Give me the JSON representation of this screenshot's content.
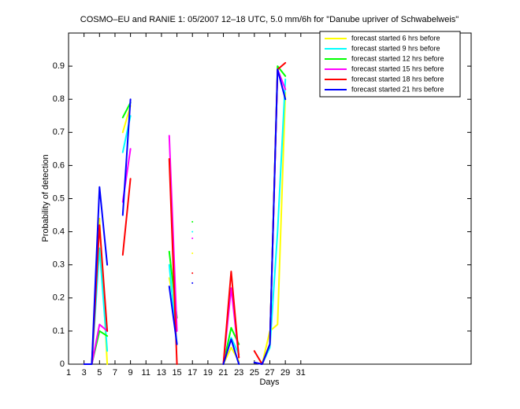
{
  "chart_data": {
    "type": "line",
    "title": "COSMO–EU and RANIE 1: 05/2007 12–18 UTC, 5.0 mm/6h for \"Danube upriver of Schwabelweis\"",
    "xlabel": "Days",
    "ylabel": "Probability of detection",
    "x": [
      1,
      2,
      3,
      4,
      5,
      6,
      7,
      8,
      9,
      10,
      11,
      12,
      13,
      14,
      15,
      16,
      17,
      18,
      19,
      20,
      21,
      22,
      23,
      24,
      25,
      26,
      27,
      28,
      29,
      30,
      31
    ],
    "xlim": [
      1,
      53
    ],
    "xticks": [
      1,
      3,
      5,
      7,
      9,
      11,
      13,
      15,
      17,
      19,
      21,
      23,
      25,
      27,
      29,
      31
    ],
    "ylim": [
      0,
      1
    ],
    "yticks": [
      0,
      0.1,
      0.2,
      0.3,
      0.4,
      0.5,
      0.6,
      0.7,
      0.8,
      0.9
    ],
    "legend": "upper right",
    "series": [
      {
        "name": "forecast started 6 hrs before",
        "color": "#ffff00",
        "values": [
          null,
          null,
          0,
          0,
          0.44,
          0,
          null,
          0.7,
          0.78,
          null,
          null,
          null,
          null,
          0.26,
          0.14,
          null,
          0.335,
          null,
          null,
          null,
          0,
          0.05,
          0.01,
          null,
          0.005,
          0,
          0.1,
          0.12,
          0.82,
          null,
          null
        ]
      },
      {
        "name": "forecast started 9 hrs before",
        "color": "#00ffff",
        "values": [
          null,
          null,
          0,
          0,
          0.35,
          0.04,
          null,
          0.64,
          0.75,
          null,
          null,
          null,
          null,
          0.3,
          0.06,
          null,
          0.4,
          null,
          null,
          null,
          0,
          0.08,
          0.03,
          null,
          0.005,
          0,
          0.05,
          0.4,
          0.86,
          null,
          null
        ]
      },
      {
        "name": "forecast started 12 hrs before",
        "color": "#00ff00",
        "values": [
          null,
          null,
          0,
          0,
          0.1,
          0.085,
          null,
          0.745,
          0.79,
          null,
          null,
          null,
          null,
          0.34,
          0.14,
          null,
          0.43,
          null,
          null,
          null,
          0,
          0.11,
          0.06,
          null,
          0.005,
          0,
          0.06,
          0.9,
          0.87,
          null,
          null
        ]
      },
      {
        "name": "forecast started 15 hrs before",
        "color": "#ff00ff",
        "values": [
          null,
          null,
          0,
          0,
          0.12,
          0.1,
          null,
          0.49,
          0.65,
          null,
          null,
          null,
          null,
          0.69,
          0.1,
          null,
          0.38,
          null,
          null,
          null,
          0,
          0.23,
          0.02,
          null,
          0.005,
          0,
          0.06,
          0.89,
          0.83,
          null,
          null
        ]
      },
      {
        "name": "forecast started 18 hrs before",
        "color": "#ff0000",
        "values": [
          null,
          null,
          0,
          0,
          0.42,
          0.1,
          null,
          0.33,
          0.56,
          null,
          null,
          null,
          null,
          0.62,
          0,
          null,
          0.275,
          null,
          null,
          null,
          0,
          0.28,
          0.02,
          null,
          0.04,
          0,
          0.06,
          0.89,
          0.91,
          null,
          null
        ]
      },
      {
        "name": "forecast started 21 hrs before",
        "color": "#0000ff",
        "values": [
          null,
          null,
          0,
          0,
          0.535,
          0.3,
          null,
          0.45,
          0.8,
          null,
          null,
          null,
          null,
          0.235,
          0.06,
          null,
          0.245,
          null,
          null,
          null,
          0,
          0.075,
          0,
          null,
          0.005,
          0,
          0.06,
          0.89,
          0.8,
          null,
          null
        ]
      }
    ]
  }
}
